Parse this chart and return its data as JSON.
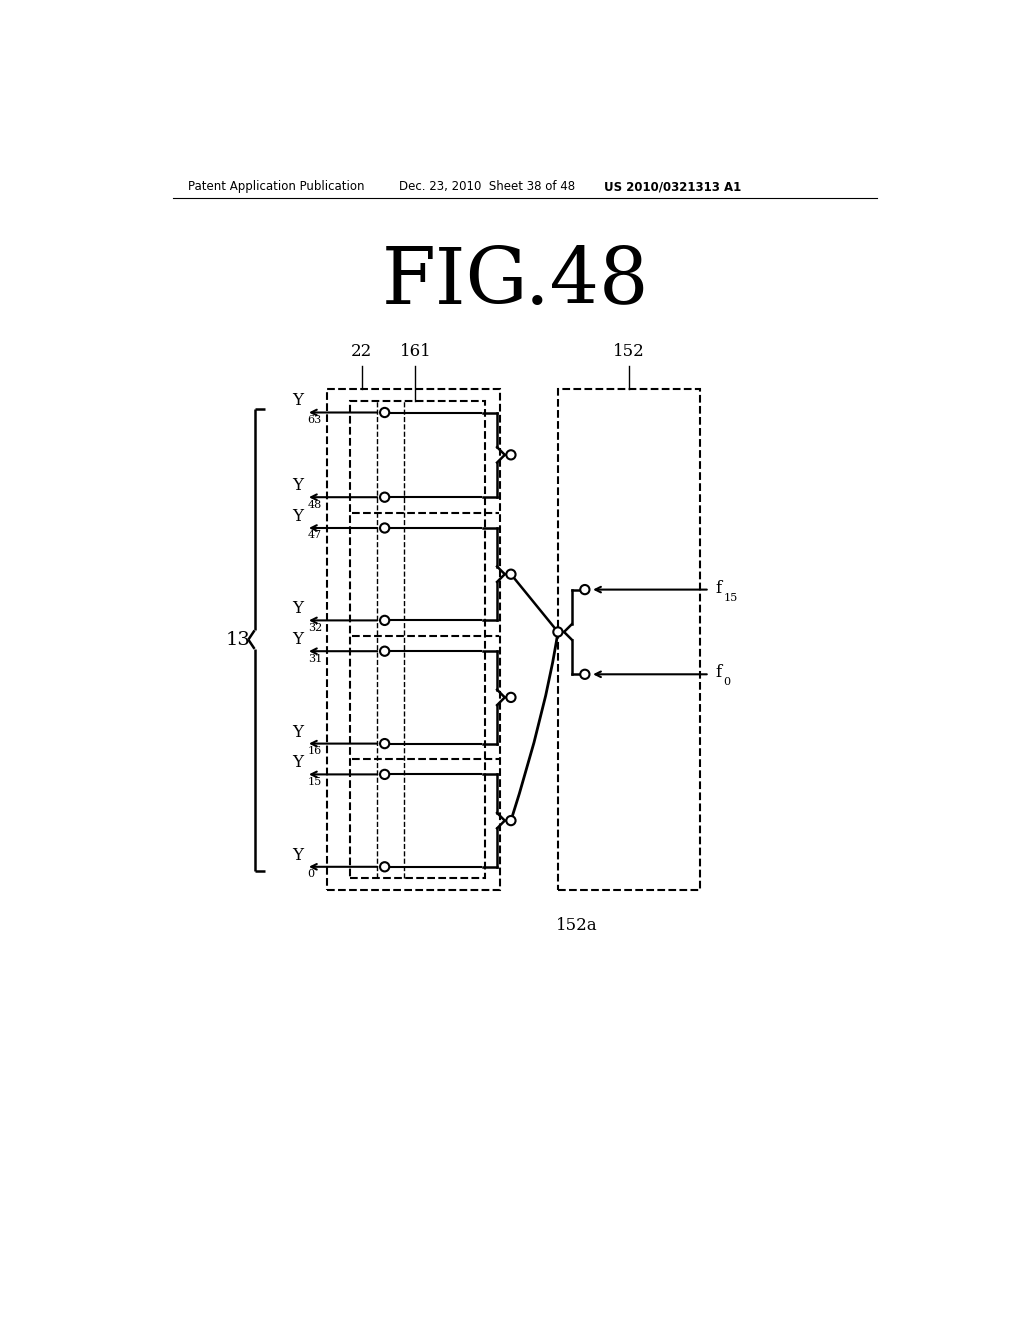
{
  "title": "FIG.48",
  "header_left": "Patent Application Publication",
  "header_center": "Dec. 23, 2010  Sheet 38 of 48",
  "header_right": "US 2010/0321313 A1",
  "background": "#ffffff",
  "line_color": "#000000"
}
